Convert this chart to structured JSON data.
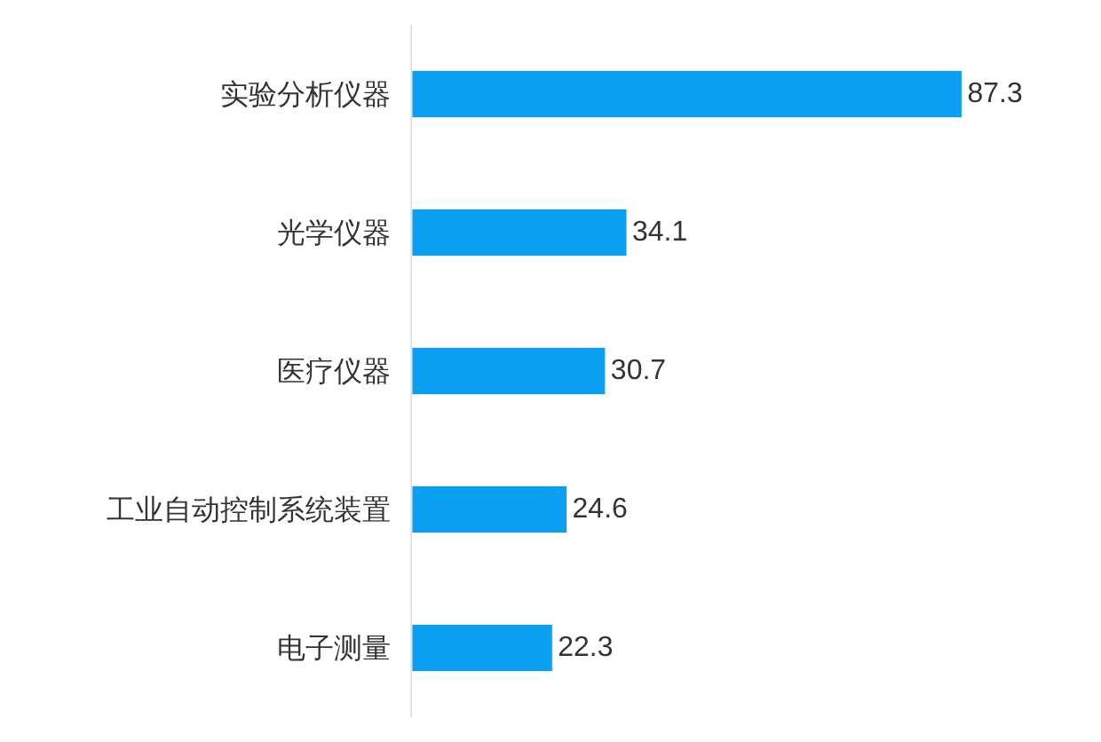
{
  "chart_data": {
    "type": "bar",
    "orientation": "horizontal",
    "categories": [
      "实验分析仪器",
      "光学仪器",
      "医疗仪器",
      "工业自动控制系统装置",
      "电子测量"
    ],
    "values": [
      87.3,
      34.1,
      30.7,
      24.6,
      22.3
    ],
    "color": "#0a9ff0",
    "data_labels": true
  }
}
